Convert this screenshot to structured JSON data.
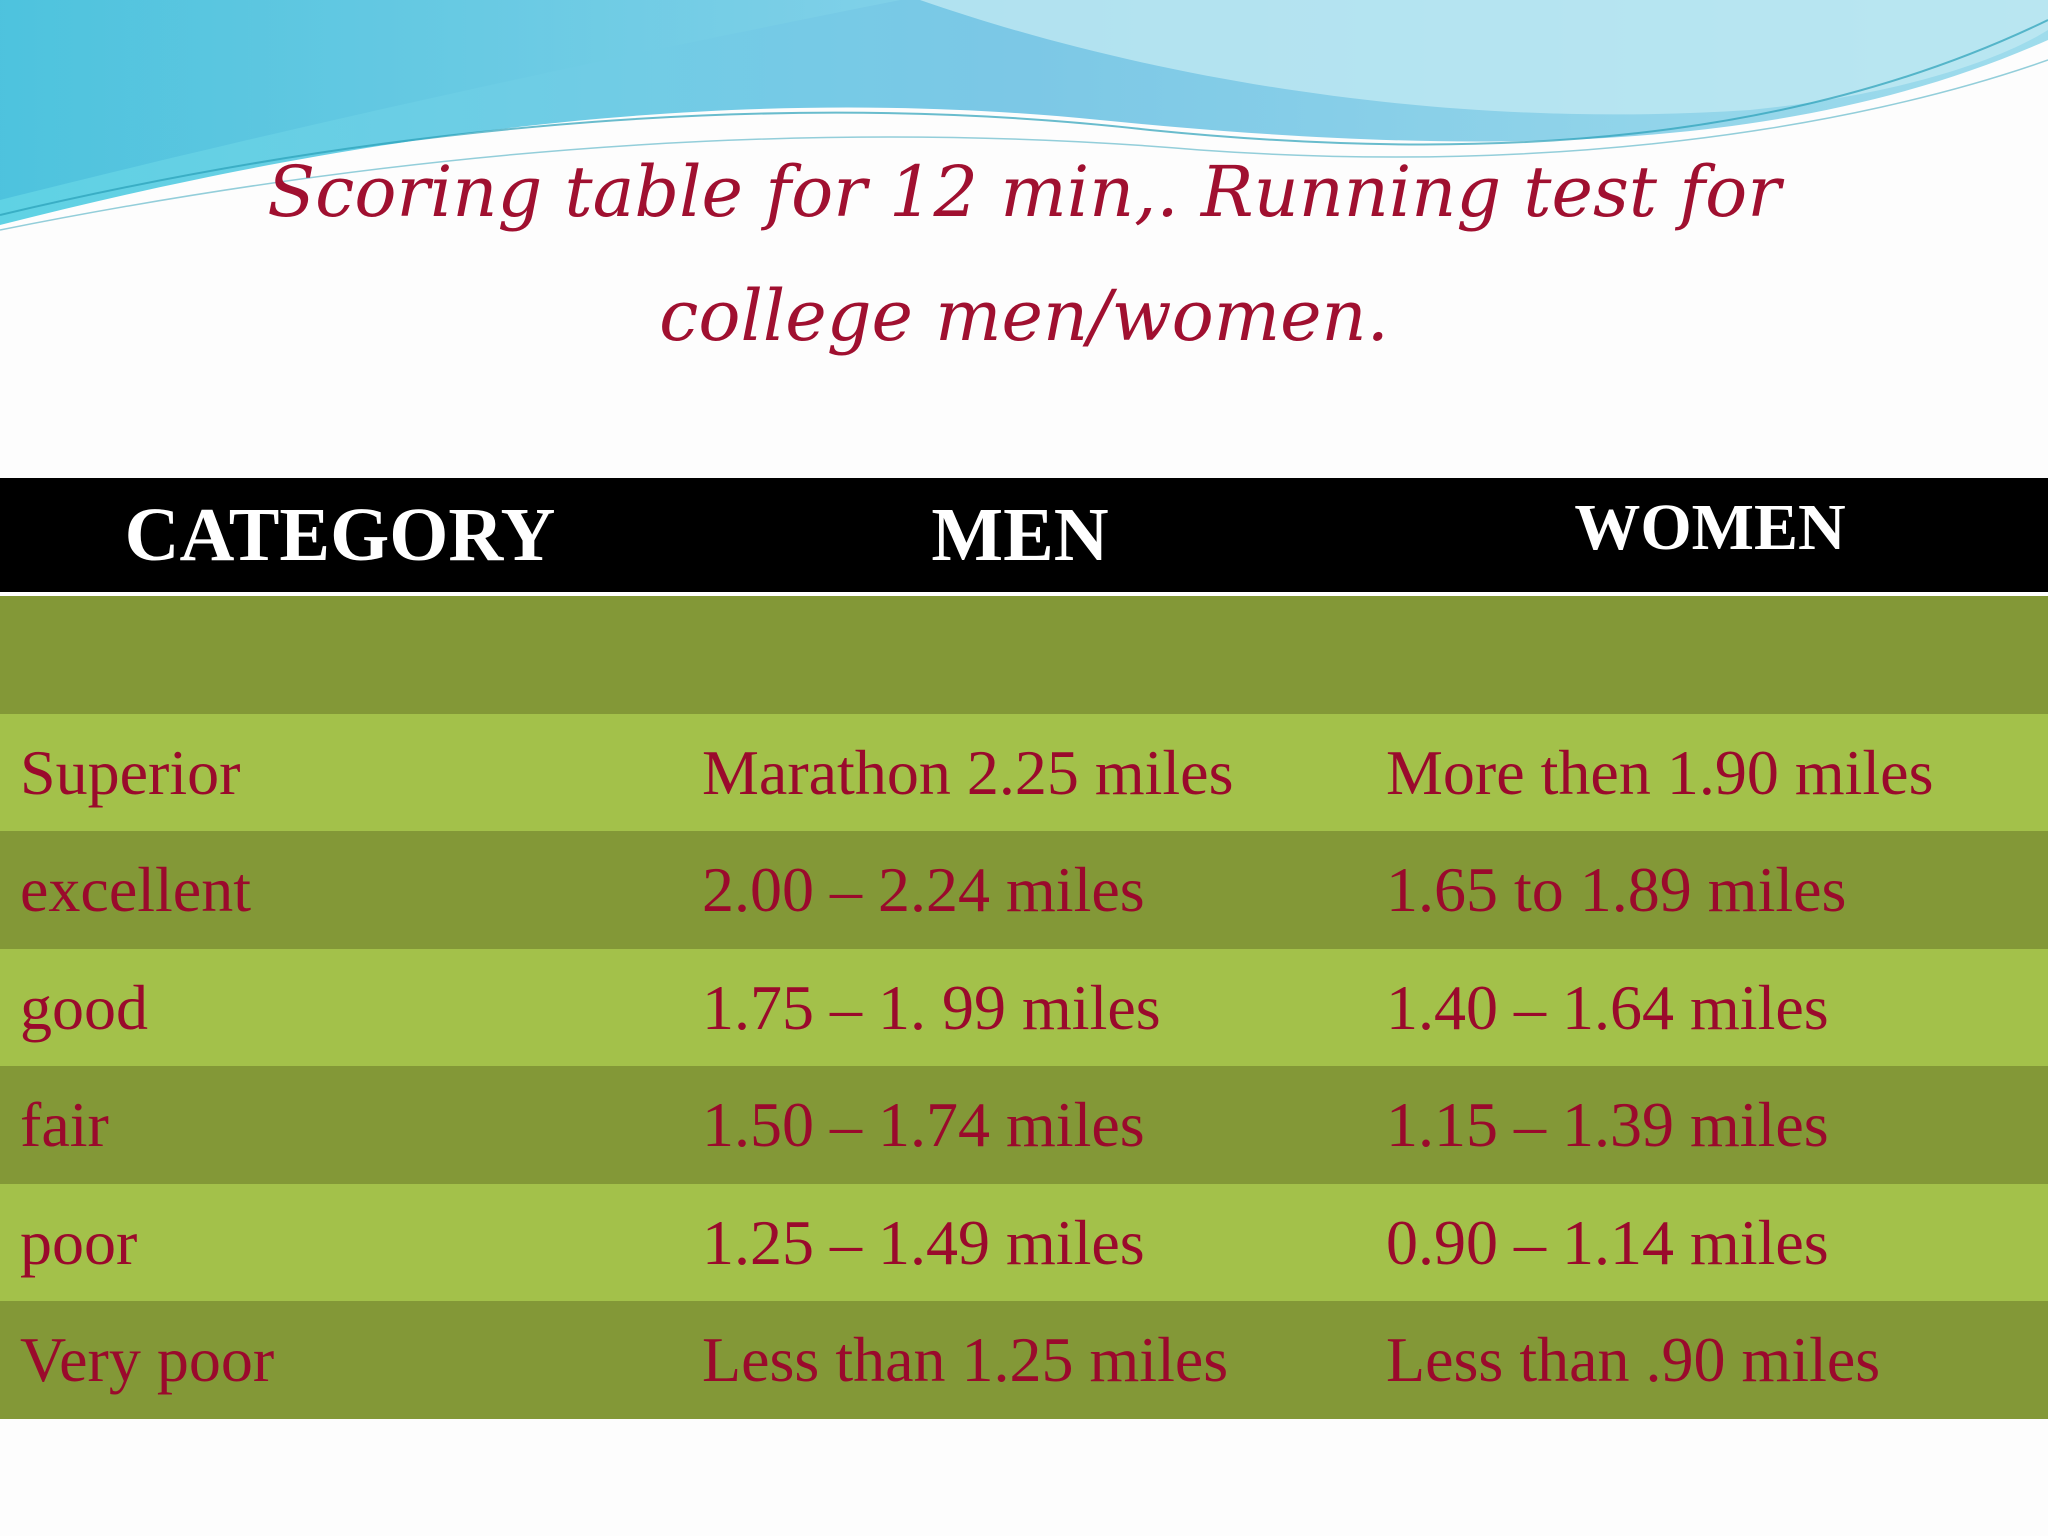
{
  "slide": {
    "title": "Scoring table for 12 min,. Running test for college men/women.",
    "colors": {
      "title": "#a01030",
      "header_bg": "#000000",
      "row_dark": "#839837",
      "row_light": "#a3c14a",
      "cell_text": "#9a0a2c"
    }
  },
  "table": {
    "headers": {
      "category": "CATEGORY",
      "men": "MEN",
      "women": "WOMEN"
    },
    "rows": [
      {
        "category": "Superior",
        "men": "Marathon 2.25 miles",
        "women": "More then 1.90 miles"
      },
      {
        "category": "excellent",
        "men": "2.00 – 2.24 miles",
        "women": "1.65  to  1.89 miles"
      },
      {
        "category": "good",
        "men": "1.75 – 1. 99 miles",
        "women": "1.40 – 1.64 miles"
      },
      {
        "category": "fair",
        "men": "1.50 – 1.74 miles",
        "women": "1.15 – 1.39 miles"
      },
      {
        "category": "poor",
        "men": "1.25 – 1.49 miles",
        "women": "0.90 – 1.14 miles"
      },
      {
        "category": "Very poor",
        "men": "Less than 1.25 miles",
        "women": "Less than .90 miles"
      }
    ]
  }
}
